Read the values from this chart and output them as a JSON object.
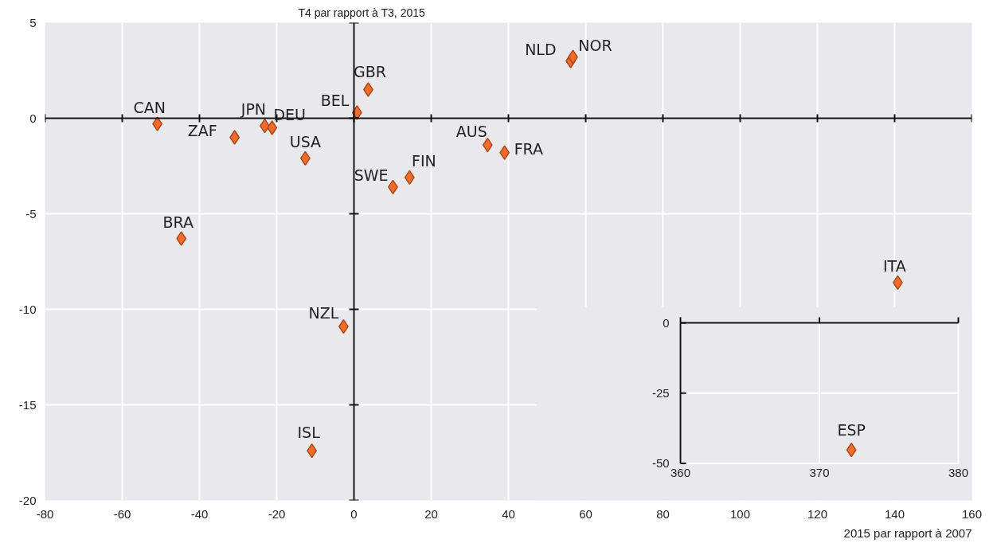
{
  "chart_data": [
    {
      "type": "scatter",
      "ylabel": "T4 par rapport à T3, 2015",
      "xlabel": "2015 par rapport à 2007",
      "xlim": [
        -80,
        160
      ],
      "ylim": [
        -20,
        5
      ],
      "xticks": [
        -80,
        -60,
        -40,
        -20,
        0,
        20,
        40,
        60,
        80,
        100,
        120,
        140,
        160
      ],
      "yticks": [
        -20,
        -15,
        -10,
        -5,
        0,
        5
      ],
      "grid": true,
      "legend": false,
      "marker": "diamond",
      "series": [
        {
          "name": "CAN",
          "color": "#f26b2a",
          "x": [
            -50.9
          ],
          "values": [
            -0.3
          ]
        },
        {
          "name": "ZAF",
          "color": "#f26b2a",
          "x": [
            -30.9
          ],
          "values": [
            -1.0
          ]
        },
        {
          "name": "JPN",
          "color": "#f26b2a",
          "x": [
            -23.1
          ],
          "values": [
            -0.4
          ]
        },
        {
          "name": "DEU",
          "color": "#f26b2a",
          "x": [
            -21.2
          ],
          "values": [
            -0.5
          ]
        },
        {
          "name": "USA",
          "color": "#f26b2a",
          "x": [
            -12.6
          ],
          "values": [
            -2.1
          ]
        },
        {
          "name": "BRA",
          "color": "#f26b2a",
          "x": [
            -44.7
          ],
          "values": [
            -6.3
          ]
        },
        {
          "name": "BEL",
          "color": "#f26b2a",
          "x": [
            0.8
          ],
          "values": [
            0.3
          ]
        },
        {
          "name": "GBR",
          "color": "#f26b2a",
          "x": [
            3.7
          ],
          "values": [
            1.5
          ]
        },
        {
          "name": "NZL",
          "color": "#f26b2a",
          "x": [
            -2.7
          ],
          "values": [
            -10.9
          ]
        },
        {
          "name": "ISL",
          "color": "#f26b2a",
          "x": [
            -10.9
          ],
          "values": [
            -17.4
          ]
        },
        {
          "name": "SWE",
          "color": "#f26b2a",
          "x": [
            10.1
          ],
          "values": [
            -3.6
          ]
        },
        {
          "name": "FIN",
          "color": "#f26b2a",
          "x": [
            14.4
          ],
          "values": [
            -3.1
          ]
        },
        {
          "name": "AUS",
          "color": "#f26b2a",
          "x": [
            34.6
          ],
          "values": [
            -1.4
          ]
        },
        {
          "name": "FRA",
          "color": "#f26b2a",
          "x": [
            39.0
          ],
          "values": [
            -1.8
          ]
        },
        {
          "name": "NLD",
          "color": "#f26b2a",
          "x": [
            56.1
          ],
          "values": [
            3.0
          ]
        },
        {
          "name": "NOR",
          "color": "#f26b2a",
          "x": [
            56.7
          ],
          "values": [
            3.2
          ]
        },
        {
          "name": "ITA",
          "color": "#f26b2a",
          "x": [
            140.8
          ],
          "values": [
            -8.6
          ]
        }
      ]
    },
    {
      "type": "scatter",
      "xlim": [
        360,
        380
      ],
      "ylim": [
        -50,
        0
      ],
      "xticks": [
        360,
        370,
        380
      ],
      "yticks": [
        -50,
        -25,
        0
      ],
      "grid": true,
      "legend": false,
      "marker": "diamond",
      "series": [
        {
          "name": "ESP",
          "color": "#f26b2a",
          "x": [
            372.3
          ],
          "values": [
            -45.2
          ]
        }
      ]
    }
  ]
}
